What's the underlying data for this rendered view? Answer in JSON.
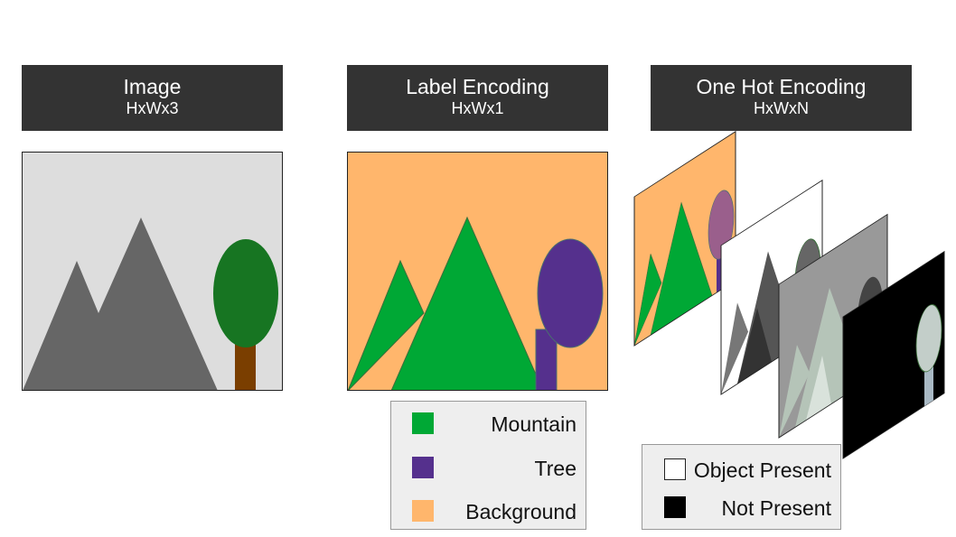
{
  "headers": {
    "image": {
      "title": "Image",
      "subtitle": "HxWx3"
    },
    "label_encoding": {
      "title": "Label Encoding",
      "subtitle": "HxWx1"
    },
    "one_hot_encoding": {
      "title": "One Hot Encoding",
      "subtitle": "HxWxN"
    }
  },
  "label_legend": [
    {
      "label": "Mountain",
      "color": "#00a835"
    },
    {
      "label": "Tree",
      "color": "#55308d"
    },
    {
      "label": "Background",
      "color": "#ffb66c"
    }
  ],
  "presence_legend": [
    {
      "label": "Object Present",
      "color": "#ffffff"
    },
    {
      "label": "Not Present",
      "color": "#000000"
    }
  ],
  "colors": {
    "header_bg": "#333333",
    "image_bg": "#dddddd",
    "mountain_gray": "#666666",
    "tree_green": "#177522",
    "trunk_brown": "#7a3e00"
  }
}
